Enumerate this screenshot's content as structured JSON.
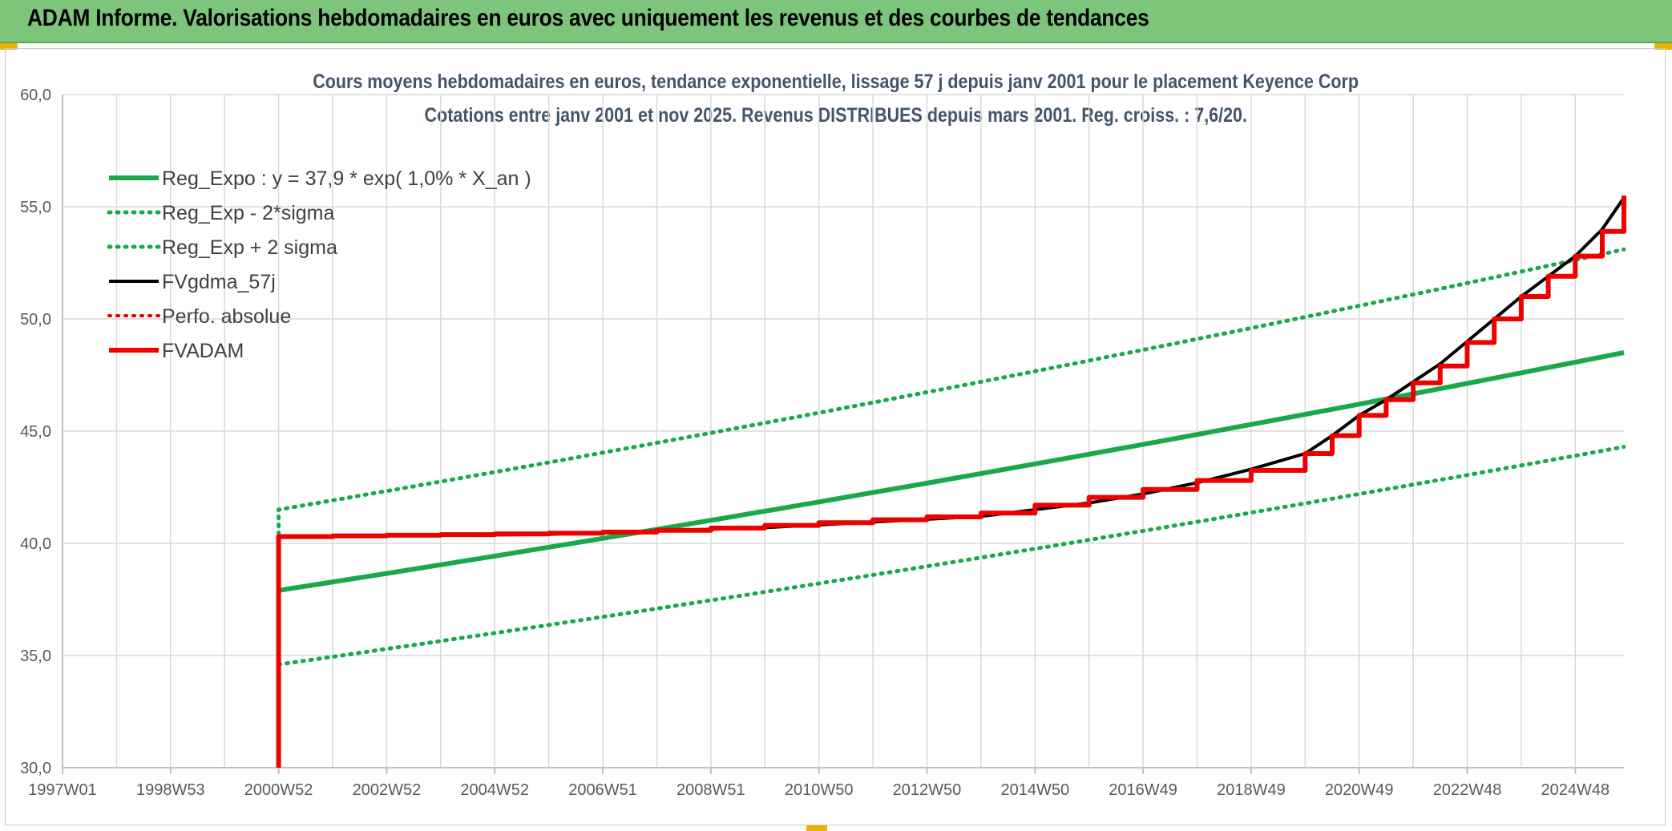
{
  "header": {
    "title": "ADAM Informe. Valorisations hebdomadaires en euros avec uniquement les revenus et des courbes de tendances"
  },
  "chart_data": {
    "type": "line",
    "title": "Cours moyens hebdomadaires en euros, tendance exponentielle, lissage 57 j depuis janv 2001 pour le placement Keyence Corp",
    "subtitle": "Cotations entre janv 2001 et nov 2025. Revenus DISTRIBUES depuis mars 2001. Reg. croiss. : 7,6/20.",
    "xlabel": "",
    "ylabel": "",
    "ylim": [
      30,
      60
    ],
    "xlim": [
      1997.0,
      2025.9
    ],
    "y_ticks": [
      "30,0",
      "35,0",
      "40,0",
      "45,0",
      "50,0",
      "55,0",
      "60,0"
    ],
    "x_ticks": [
      {
        "label": "1997W01",
        "x": 1997.0
      },
      {
        "label": "1998W53",
        "x": 1999.0
      },
      {
        "label": "2000W52",
        "x": 2001.0
      },
      {
        "label": "2002W52",
        "x": 2003.0
      },
      {
        "label": "2004W52",
        "x": 2005.0
      },
      {
        "label": "2006W51",
        "x": 2007.0
      },
      {
        "label": "2008W51",
        "x": 2009.0
      },
      {
        "label": "2010W50",
        "x": 2011.0
      },
      {
        "label": "2012W50",
        "x": 2013.0
      },
      {
        "label": "2014W50",
        "x": 2015.0
      },
      {
        "label": "2016W49",
        "x": 2017.0
      },
      {
        "label": "2018W49",
        "x": 2019.0
      },
      {
        "label": "2020W49",
        "x": 2021.0
      },
      {
        "label": "2022W48",
        "x": 2023.0
      },
      {
        "label": "2024W48",
        "x": 2025.0
      }
    ],
    "grid": true,
    "legend_position": "top-left",
    "series": [
      {
        "name": "Reg_Expo : y = 37,9 * exp( 1,0% *  X_an )",
        "color": "#1aa84b",
        "style": "solid",
        "width": 6,
        "x": [
          2001.0,
          2025.9
        ],
        "y": [
          37.9,
          48.5
        ]
      },
      {
        "name": "Reg_Exp - 2*sigma",
        "color": "#1aa84b",
        "style": "dotted",
        "width": 5,
        "x": [
          2001.0,
          2025.9
        ],
        "y": [
          34.6,
          44.3
        ]
      },
      {
        "name": "Reg_Exp + 2 sigma",
        "color": "#1aa84b",
        "style": "dotted",
        "width": 5,
        "x": [
          2001.0,
          2001.0,
          2025.9
        ],
        "y": [
          40.4,
          41.5,
          53.1
        ]
      },
      {
        "name": "FVgdma_57j",
        "color": "#000000",
        "style": "solid",
        "width": 4,
        "x": [
          2001.0,
          2006.0,
          2010.0,
          2014.0,
          2016.0,
          2017.0,
          2018.0,
          2019.0,
          2020.0,
          2020.5,
          2021.0,
          2021.5,
          2022.0,
          2022.5,
          2023.0,
          2023.5,
          2024.0,
          2024.5,
          2025.0,
          2025.5,
          2025.9
        ],
        "y": [
          40.3,
          40.4,
          40.7,
          41.2,
          41.8,
          42.2,
          42.7,
          43.3,
          44.0,
          44.8,
          45.7,
          46.4,
          47.2,
          48.0,
          49.0,
          50.0,
          51.0,
          51.9,
          52.8,
          54.0,
          55.4
        ]
      },
      {
        "name": "Perfo. absolue",
        "color": "#e00000",
        "style": "dotted",
        "width": 4,
        "x": [],
        "y": []
      },
      {
        "name": "FVADAM",
        "color": "#ee0000",
        "style": "step",
        "width": 6,
        "x": [
          2001.0,
          2001.0,
          2002,
          2003,
          2004,
          2005,
          2006,
          2007,
          2008,
          2009,
          2010,
          2011,
          2012,
          2013,
          2014,
          2015,
          2016,
          2017,
          2018,
          2019,
          2020,
          2020.5,
          2021,
          2021.5,
          2022,
          2022.5,
          2023,
          2023.5,
          2024,
          2024.5,
          2025,
          2025.5,
          2025.9
        ],
        "y": [
          30.0,
          40.3,
          40.33,
          40.36,
          40.39,
          40.42,
          40.45,
          40.5,
          40.58,
          40.68,
          40.8,
          40.92,
          41.05,
          41.18,
          41.35,
          41.7,
          42.05,
          42.4,
          42.8,
          43.25,
          44.0,
          44.8,
          45.7,
          46.4,
          47.15,
          47.9,
          48.95,
          50.0,
          51.0,
          51.9,
          52.8,
          53.9,
          55.5
        ]
      }
    ]
  }
}
